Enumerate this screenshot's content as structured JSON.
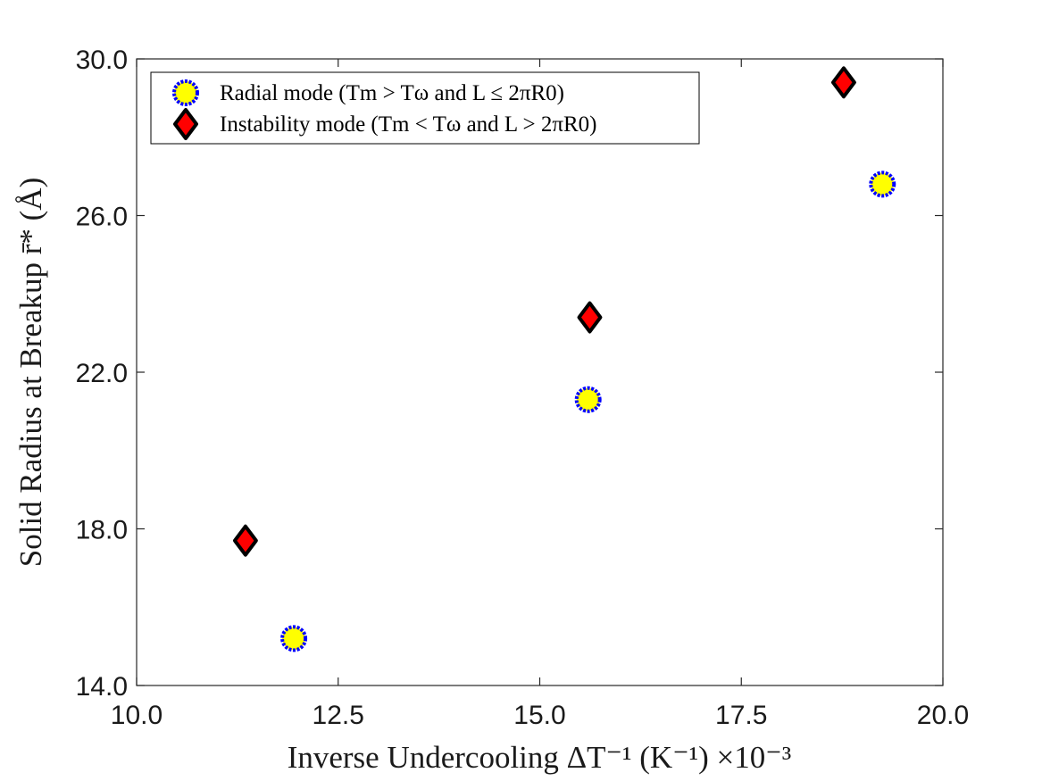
{
  "chart_data": {
    "type": "scatter",
    "title": "",
    "xlabel": "Inverse Undercooling ΔT⁻¹ (K⁻¹) ×10⁻³",
    "ylabel": "Solid Radius at Breakup r̄* (Å)",
    "xlim": [
      10.0,
      20.0
    ],
    "ylim": [
      14.0,
      30.0
    ],
    "x_ticks": [
      "10.0",
      "12.5",
      "15.0",
      "17.5",
      "20.0"
    ],
    "y_ticks": [
      "14.0",
      "18.0",
      "22.0",
      "26.0",
      "30.0"
    ],
    "grid": false,
    "legend_position": "top-left",
    "series": [
      {
        "name": "Radial mode (Tm > Tω and L ≤ 2πR0)",
        "marker": "circle",
        "fill_color": "#ffff00",
        "edge_color": "#0000ff",
        "x": [
          11.95,
          15.6,
          19.25
        ],
        "y": [
          15.2,
          21.3,
          26.8
        ]
      },
      {
        "name": "Instability mode (Tm < Tω and L > 2πR0)",
        "marker": "diamond",
        "fill_color": "#ff0000",
        "edge_color": "#000000",
        "x": [
          11.35,
          15.62,
          18.77
        ],
        "y": [
          17.7,
          23.4,
          29.4
        ]
      }
    ]
  }
}
